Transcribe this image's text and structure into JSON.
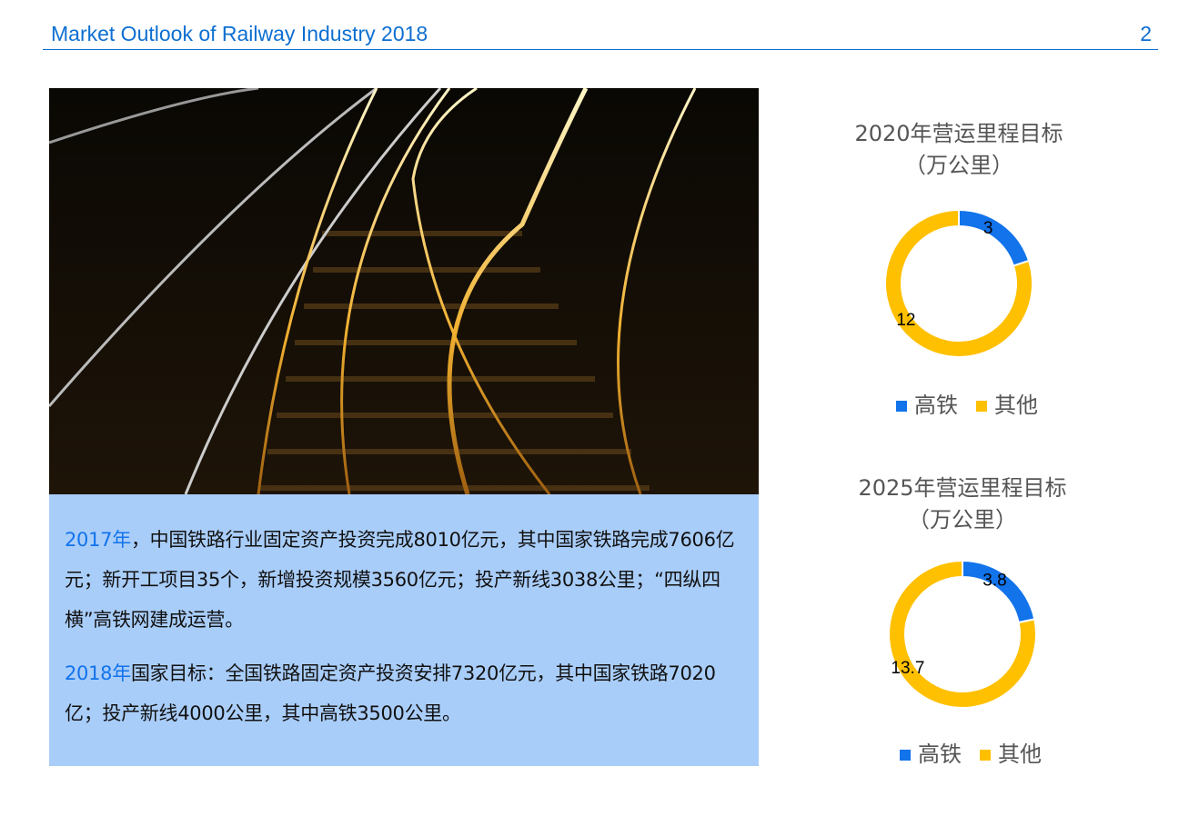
{
  "header": {
    "title": "Market Outlook of Railway Industry 2018",
    "page_number": "2"
  },
  "textbox": {
    "p1_year": "2017年",
    "p1_text": "，中国铁路行业固定资产投资完成8010亿元，其中国家铁路完成7606亿元；新开工项目35个，新增投资规模3560亿元；投产新线3038公里；“四纵四横”高铁网建成运营。",
    "p2_year": "2018年",
    "p2_text": "国家目标：全国铁路固定资产投资安排7320亿元，其中国家铁路7020亿；投产新线4000公里，其中高铁3500公里。"
  },
  "colors": {
    "accent": "#0d6fd1",
    "highspeed": "#1273eb",
    "other": "#ffc000",
    "textbox_bg": "#a9cdf9"
  },
  "chart_data": [
    {
      "type": "pie",
      "donut": true,
      "title": "2020年营运里程目标",
      "subtitle": "（万公里）",
      "categories": [
        "高铁",
        "其他"
      ],
      "values": [
        3,
        12
      ],
      "data_labels": [
        "3",
        "12"
      ],
      "legend": "bottom"
    },
    {
      "type": "pie",
      "donut": true,
      "title": "2025年营运里程目标",
      "subtitle": "（万公里）",
      "categories": [
        "高铁",
        "其他"
      ],
      "values": [
        3.8,
        13.7
      ],
      "data_labels": [
        "3.8",
        "13.7"
      ],
      "legend": "bottom"
    }
  ]
}
